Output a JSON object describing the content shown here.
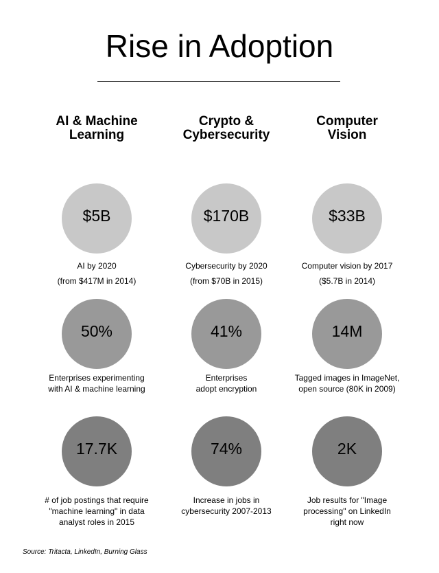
{
  "title": "Rise in Adoption",
  "colors": {
    "row1": "#c8c8c8",
    "row2": "#999999",
    "row3": "#7f7f7f"
  },
  "columns": [
    {
      "heading": [
        "AI & Machine",
        "Learning"
      ],
      "stats": [
        {
          "value": "$5B",
          "caption": [
            "AI by 2020",
            "(from $417M in 2014)"
          ]
        },
        {
          "value": "50%",
          "caption": [
            "Enterprises experimenting",
            "with AI & machine learning"
          ]
        },
        {
          "value": "17.7K",
          "caption": [
            "# of job postings that require",
            "\"machine learning\" in data",
            "analyst roles in 2015"
          ]
        }
      ]
    },
    {
      "heading": [
        "Crypto &",
        "Cybersecurity"
      ],
      "stats": [
        {
          "value": "$170B",
          "caption": [
            "Cybersecurity by 2020",
            "(from $70B in 2015)"
          ]
        },
        {
          "value": "41%",
          "caption": [
            "Enterprises",
            "adopt encryption"
          ]
        },
        {
          "value": "74%",
          "caption": [
            "Increase in jobs in",
            "cybersecurity 2007-2013"
          ]
        }
      ]
    },
    {
      "heading": [
        "Computer",
        "Vision"
      ],
      "stats": [
        {
          "value": "$33B",
          "caption": [
            "Computer vision by 2017",
            "($5.7B in 2014)"
          ]
        },
        {
          "value": "14M",
          "caption": [
            "Tagged images in ImageNet,",
            "open source (80K in 2009)"
          ]
        },
        {
          "value": "2K",
          "caption": [
            "Job results for \"Image",
            "processing\" on LinkedIn",
            "right now"
          ]
        }
      ]
    }
  ],
  "source": "Source: Tritacta, LinkedIn, Burning Glass"
}
